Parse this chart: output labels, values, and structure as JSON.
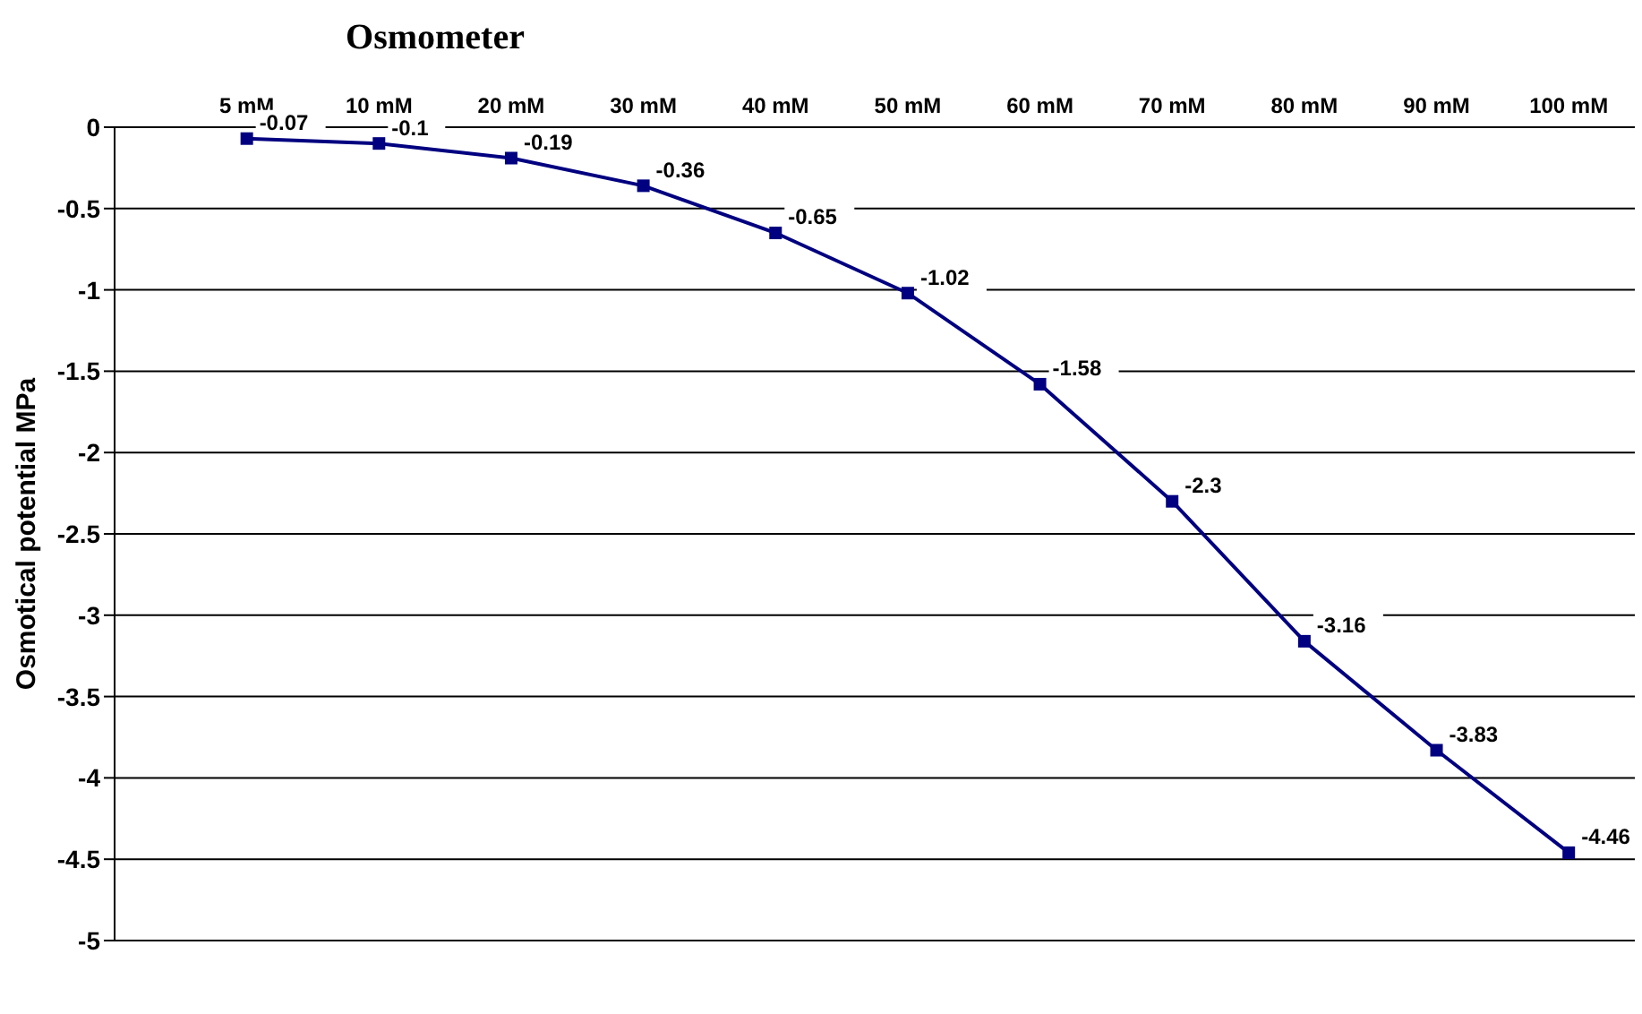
{
  "chart_data": {
    "type": "line",
    "title": "Osmometer",
    "ylabel": "Osmotical potential MPa",
    "categories": [
      "5 mM",
      "10 mM",
      "20 mM",
      "30 mM",
      "40 mM",
      "50 mM",
      "60 mM",
      "70 mM",
      "80 mM",
      "90 mM",
      "100 mM"
    ],
    "series": [
      {
        "color": "#000080",
        "values": [
          -0.07,
          -0.1,
          -0.19,
          -0.36,
          -0.65,
          -1.02,
          -1.58,
          -2.3,
          -3.16,
          -3.83,
          -4.46
        ]
      }
    ],
    "ylim": [
      -5,
      0
    ],
    "yticks": [
      -5,
      -4.5,
      -4,
      -3.5,
      -3,
      -2.5,
      -2,
      -1.5,
      -1,
      -0.5,
      0
    ],
    "grid": "y",
    "legend": false,
    "marker": "square",
    "line_style": "solid",
    "data_labels": true
  }
}
